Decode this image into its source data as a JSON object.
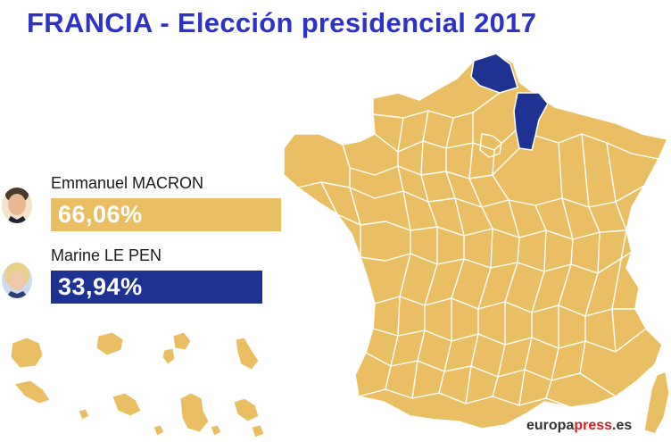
{
  "title": "FRANCIA - Elección presidencial 2017",
  "candidates": [
    {
      "name": "Emmanuel MACRON",
      "result": "66,06%",
      "share": 66.06,
      "color": "#eabf63",
      "portrait": "macron-portrait"
    },
    {
      "name": "Marine LE PEN",
      "result": "33,94%",
      "share": 33.94,
      "color": "#1e3291",
      "portrait": "le-pen-portrait"
    }
  ],
  "map": {
    "winner_fill_macron": "#eabf63",
    "winner_fill_le_pen": "#1e3291",
    "le_pen_departments": [
      "Pas-de-Calais",
      "Aisne"
    ]
  },
  "logo": {
    "part1": "europa",
    "part2": "press",
    "part3": ".es"
  }
}
